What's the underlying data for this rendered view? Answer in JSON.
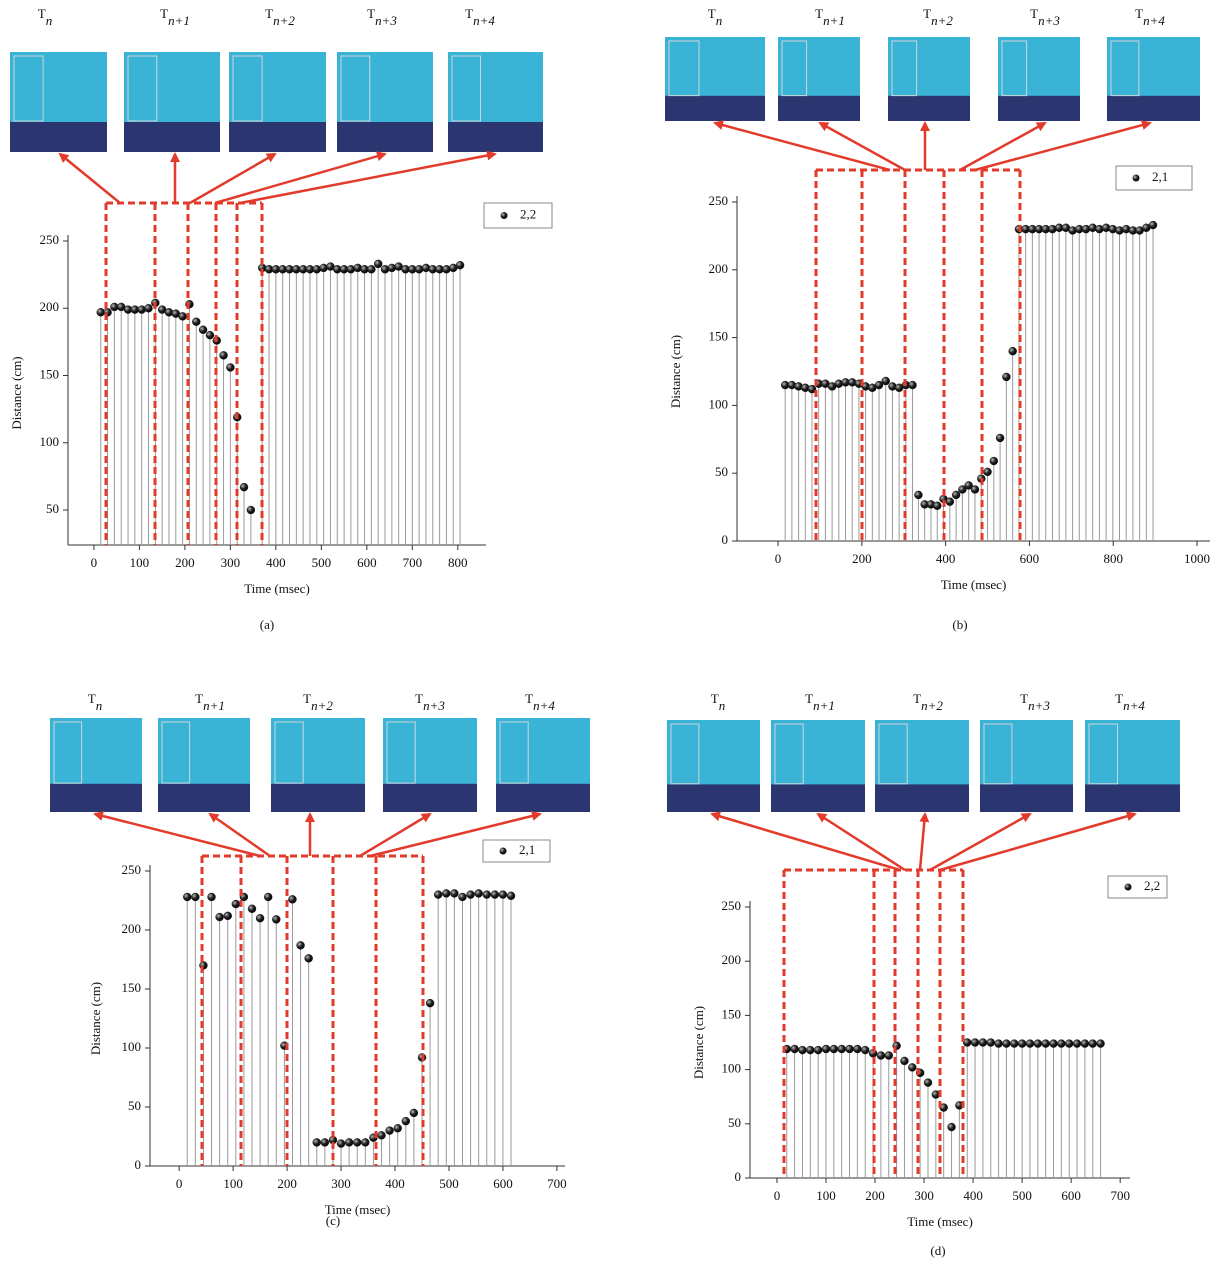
{
  "chart_data": [
    {
      "type": "stem",
      "panel_label": "(a)",
      "frame_labels": [
        [
          "T",
          "n"
        ],
        [
          "T",
          "n+1"
        ],
        [
          "T",
          "n+2"
        ],
        [
          "T",
          "n+3"
        ],
        [
          "T",
          "n+4"
        ]
      ],
      "x_label": "Time (msec)",
      "y_label": "Distance (cm)",
      "stem_color": "#9a9a9a",
      "xlim": [
        -57,
        862
      ],
      "ylim": [
        24,
        250
      ],
      "xticks": [
        0,
        100,
        200,
        300,
        400,
        500,
        600,
        700,
        800
      ],
      "yticks": [
        50,
        100,
        150,
        200,
        250
      ],
      "x": [
        15,
        30,
        45,
        60,
        75,
        90,
        105,
        120,
        135,
        150,
        165,
        180,
        195,
        210,
        225,
        240,
        255,
        270,
        285,
        300,
        315,
        330,
        345,
        370,
        385,
        400,
        415,
        430,
        445,
        460,
        475,
        490,
        505,
        520,
        535,
        550,
        565,
        580,
        595,
        610,
        625,
        640,
        655,
        670,
        685,
        700,
        715,
        730,
        745,
        760,
        775,
        790,
        805
      ],
      "series": [
        {
          "name": "2,2",
          "color": "#111111",
          "values": [
            197,
            197,
            201,
            201,
            199,
            199,
            199,
            200,
            204,
            199,
            197,
            196,
            194,
            203,
            190,
            184,
            180,
            176,
            165,
            156,
            119,
            67,
            50,
            230,
            229,
            229,
            229,
            229,
            229,
            229,
            229,
            229,
            230,
            231,
            229,
            229,
            229,
            230,
            229,
            229,
            233,
            229,
            230,
            231,
            229,
            229,
            229,
            230,
            229,
            229,
            229,
            230,
            232
          ]
        }
      ]
    },
    {
      "type": "stem",
      "panel_label": "(b)",
      "frame_labels": [
        [
          "T",
          "n"
        ],
        [
          "T",
          "n+1"
        ],
        [
          "T",
          "n+2"
        ],
        [
          "T",
          "n+3"
        ],
        [
          "T",
          "n+4"
        ]
      ],
      "x_label": "Time (msec)",
      "y_label": "Distance (cm)",
      "stem_color": "#9a9a9a",
      "xlim": [
        -98,
        1031
      ],
      "ylim": [
        0,
        250
      ],
      "xticks": [
        0,
        200,
        400,
        600,
        800,
        1000
      ],
      "yticks": [
        0,
        50,
        100,
        150,
        200,
        250
      ],
      "x": [
        17,
        33,
        49,
        65,
        81,
        97,
        113,
        129,
        145,
        161,
        177,
        193,
        209,
        225,
        241,
        257,
        273,
        289,
        305,
        321,
        335,
        350,
        365,
        380,
        395,
        410,
        425,
        440,
        455,
        470,
        485,
        500,
        515,
        530,
        545,
        560,
        575,
        591,
        607,
        623,
        639,
        655,
        671,
        687,
        703,
        719,
        735,
        751,
        767,
        783,
        799,
        815,
        831,
        847,
        863,
        879,
        895
      ],
      "series": [
        {
          "name": "2,1",
          "color": "#111111",
          "values": [
            115,
            115,
            114,
            113,
            112,
            116,
            116,
            114,
            116,
            117,
            117,
            116,
            114,
            113,
            115,
            118,
            114,
            113,
            115,
            115,
            34,
            27,
            27,
            26,
            31,
            29,
            34,
            38,
            41,
            38,
            46,
            51,
            59,
            76,
            121,
            140,
            230,
            230,
            230,
            230,
            230,
            230,
            231,
            231,
            229,
            230,
            230,
            231,
            230,
            231,
            230,
            229,
            230,
            229,
            229,
            231,
            233
          ]
        }
      ]
    },
    {
      "type": "stem",
      "panel_label": "(c)",
      "frame_labels": [
        [
          "T",
          "n"
        ],
        [
          "T",
          "n+1"
        ],
        [
          "T",
          "n+2"
        ],
        [
          "T",
          "n+3"
        ],
        [
          "T",
          "n+4"
        ]
      ],
      "x_label": "Time (msec)",
      "y_label": "Distance (cm)",
      "stem_color": "#9a9a9a",
      "xlim": [
        -54,
        715
      ],
      "ylim": [
        0,
        250
      ],
      "xticks": [
        0,
        100,
        200,
        300,
        400,
        500,
        600,
        700
      ],
      "yticks": [
        0,
        50,
        100,
        150,
        200,
        250
      ],
      "x": [
        15,
        30,
        45,
        60,
        75,
        90,
        105,
        120,
        135,
        150,
        165,
        180,
        195,
        210,
        225,
        240,
        255,
        270,
        285,
        300,
        315,
        330,
        345,
        360,
        375,
        390,
        405,
        420,
        435,
        450,
        465,
        480,
        495,
        510,
        525,
        540,
        555,
        570,
        585,
        600,
        615
      ],
      "series": [
        {
          "name": "2,1",
          "color": "#111111",
          "values": [
            228,
            228,
            170,
            228,
            211,
            212,
            222,
            228,
            218,
            210,
            228,
            209,
            102,
            226,
            187,
            176,
            20,
            20,
            22,
            19,
            20,
            20,
            20,
            24,
            26,
            30,
            32,
            38,
            45,
            92,
            138,
            230,
            231,
            231,
            228,
            230,
            231,
            230,
            230,
            230,
            229
          ]
        }
      ]
    },
    {
      "type": "stem",
      "panel_label": "(d)",
      "frame_labels": [
        [
          "T",
          "n"
        ],
        [
          "T",
          "n+1"
        ],
        [
          "T",
          "n+2"
        ],
        [
          "T",
          "n+3"
        ],
        [
          "T",
          "n+4"
        ]
      ],
      "x_label": "Time (msec)",
      "y_label": "Distance (cm)",
      "stem_color": "#9a9a9a",
      "xlim": [
        -55,
        720
      ],
      "ylim": [
        0,
        250
      ],
      "xticks": [
        0,
        100,
        200,
        300,
        400,
        500,
        600,
        700
      ],
      "yticks": [
        0,
        50,
        100,
        150,
        200,
        250
      ],
      "x": [
        20,
        36,
        52,
        68,
        84,
        100,
        116,
        132,
        148,
        164,
        180,
        196,
        212,
        228,
        244,
        260,
        276,
        292,
        308,
        324,
        340,
        356,
        372,
        388,
        404,
        420,
        436,
        452,
        468,
        484,
        500,
        516,
        532,
        548,
        564,
        580,
        596,
        612,
        628,
        644,
        660
      ],
      "series": [
        {
          "name": "2,2",
          "color": "#111111",
          "values": [
            119,
            119,
            118,
            118,
            118,
            119,
            119,
            119,
            119,
            119,
            118,
            115,
            113,
            113,
            122,
            108,
            102,
            97,
            88,
            77,
            65,
            47,
            67,
            125,
            125,
            125,
            125,
            124,
            124,
            124,
            124,
            124,
            124,
            124,
            124,
            124,
            124,
            124,
            124,
            124,
            124
          ]
        }
      ]
    }
  ]
}
